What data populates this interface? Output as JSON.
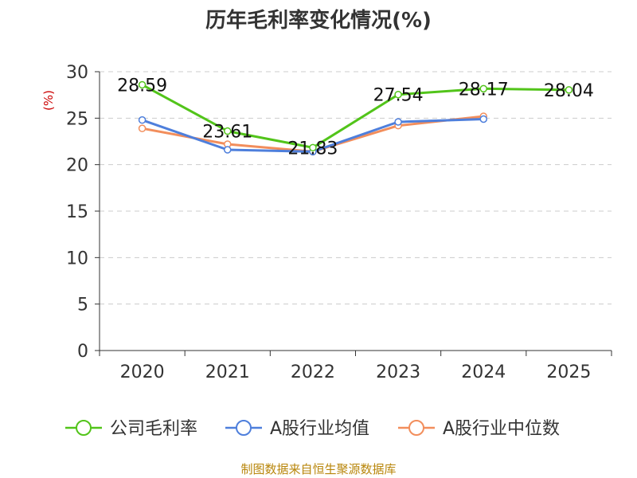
{
  "chart_data": {
    "type": "line",
    "title": "历年毛利率变化情况(%)",
    "ylabel": "(%)",
    "categories": [
      "2020",
      "2021",
      "2022",
      "2023",
      "2024",
      "2025"
    ],
    "ylim": [
      0,
      30
    ],
    "yticks": [
      0,
      5,
      10,
      15,
      20,
      25,
      30
    ],
    "grid": true,
    "legend_position": "bottom",
    "series": [
      {
        "name": "公司毛利率",
        "color": "#52c41a",
        "values": [
          28.59,
          23.61,
          21.83,
          27.54,
          28.17,
          28.04
        ],
        "labels": [
          "28.59",
          "23.61",
          "21.83",
          "27.54",
          "28.17",
          "28.04"
        ]
      },
      {
        "name": "A股行业均值",
        "color": "#4e7fdc",
        "values": [
          24.8,
          21.6,
          21.4,
          24.6,
          24.9,
          null
        ]
      },
      {
        "name": "A股行业中位数",
        "color": "#f28e5c",
        "values": [
          23.9,
          22.2,
          21.4,
          24.2,
          25.2,
          null
        ]
      }
    ]
  },
  "source": "制图数据来自恒生聚源数据库"
}
